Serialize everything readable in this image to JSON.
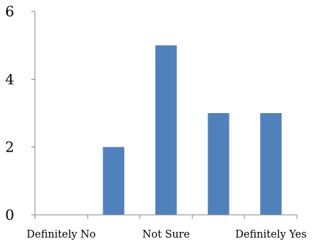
{
  "chart_data": {
    "type": "bar",
    "categories": [
      "",
      "",
      "",
      "",
      ""
    ],
    "category_tick_labels": [
      "Definitely No",
      "Not Sure",
      "Definitely Yes"
    ],
    "values": [
      0,
      2,
      5,
      3,
      3
    ],
    "y_ticks": [
      "0",
      "2",
      "4",
      "6"
    ],
    "ylim": [
      0,
      6
    ],
    "bar_color": "#4F81BD",
    "axis_color": "#868686",
    "grid": false,
    "legend": "none",
    "title": "",
    "xlabel": "",
    "ylabel": ""
  }
}
